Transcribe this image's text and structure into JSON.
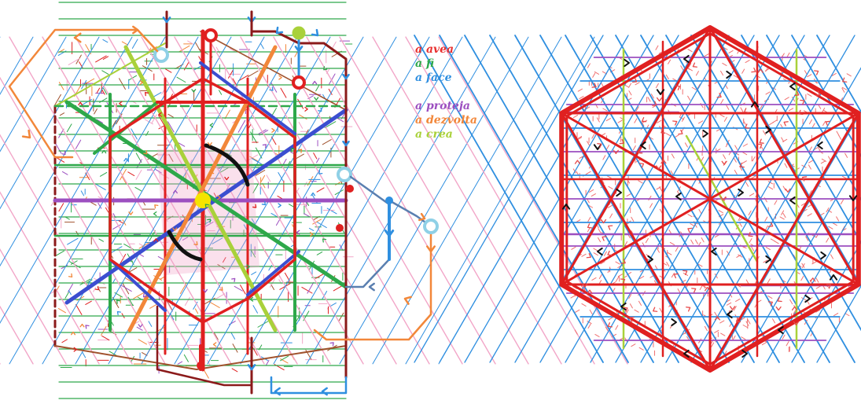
{
  "legend": {
    "group1": [
      {
        "label": "a avea",
        "color": "#e8302f"
      },
      {
        "label": "a fi",
        "color": "#2ea84a"
      },
      {
        "label": "a face",
        "color": "#2f8fe0"
      }
    ],
    "group2": [
      {
        "label": "a proteja",
        "color": "#9c4fc0"
      },
      {
        "label": "a dezvolta",
        "color": "#f2873a"
      },
      {
        "label": "a crea",
        "color": "#a9d13a"
      }
    ]
  },
  "colors": {
    "red": "#e02020",
    "green": "#2ea84a",
    "blue": "#2f8fe0",
    "darkblue": "#3b4ed0",
    "purple": "#9c4fc0",
    "orange": "#f2873a",
    "lime": "#a9d13a",
    "pink": "#f2a6c8",
    "maroon": "#8b1a1a",
    "lightblue": "#8fd0e6",
    "yellow": "#f5e400",
    "black": "#111111",
    "brown": "#a0522d",
    "steel": "#5a7fb0"
  },
  "icons": {
    "legend_marker": "color-swatch-text",
    "arrow": "chevron-arrow",
    "node": "circle-node"
  }
}
